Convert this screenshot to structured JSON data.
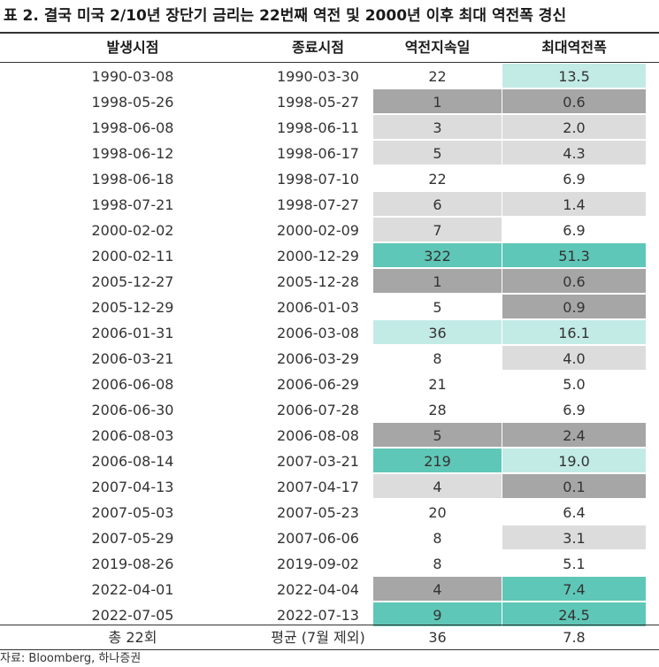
{
  "title": "표 2. 결국 미국 2/10년 장단기 금리는 22번째 역전 및 2000년 이후 최대 역전폭 경신",
  "colors": {
    "light": "#c2ebe6",
    "gray": "#dcdcdc",
    "dark": "#a6a6a6",
    "teal": "#5fc7b7"
  },
  "headers": [
    "발생시점",
    "종료시점",
    "역전지속일",
    "최대역전폭"
  ],
  "rows": [
    {
      "start": "1990-03-08",
      "end": "1990-03-30",
      "days": "22",
      "max": "13.5",
      "days_fill": "none",
      "max_fill": "light"
    },
    {
      "start": "1998-05-26",
      "end": "1998-05-27",
      "days": "1",
      "max": "0.6",
      "days_fill": "dark",
      "max_fill": "dark"
    },
    {
      "start": "1998-06-08",
      "end": "1998-06-11",
      "days": "3",
      "max": "2.0",
      "days_fill": "gray",
      "max_fill": "gray"
    },
    {
      "start": "1998-06-12",
      "end": "1998-06-17",
      "days": "5",
      "max": "4.3",
      "days_fill": "gray",
      "max_fill": "gray"
    },
    {
      "start": "1998-06-18",
      "end": "1998-07-10",
      "days": "22",
      "max": "6.9",
      "days_fill": "none",
      "max_fill": "none"
    },
    {
      "start": "1998-07-21",
      "end": "1998-07-27",
      "days": "6",
      "max": "1.4",
      "days_fill": "gray",
      "max_fill": "gray"
    },
    {
      "start": "2000-02-02",
      "end": "2000-02-09",
      "days": "7",
      "max": "6.9",
      "days_fill": "gray",
      "max_fill": "none"
    },
    {
      "start": "2000-02-11",
      "end": "2000-12-29",
      "days": "322",
      "max": "51.3",
      "days_fill": "teal",
      "max_fill": "teal"
    },
    {
      "start": "2005-12-27",
      "end": "2005-12-28",
      "days": "1",
      "max": "0.6",
      "days_fill": "dark",
      "max_fill": "dark"
    },
    {
      "start": "2005-12-29",
      "end": "2006-01-03",
      "days": "5",
      "max": "0.9",
      "days_fill": "none",
      "max_fill": "dark"
    },
    {
      "start": "2006-01-31",
      "end": "2006-03-08",
      "days": "36",
      "max": "16.1",
      "days_fill": "light",
      "max_fill": "light"
    },
    {
      "start": "2006-03-21",
      "end": "2006-03-29",
      "days": "8",
      "max": "4.0",
      "days_fill": "none",
      "max_fill": "gray"
    },
    {
      "start": "2006-06-08",
      "end": "2006-06-29",
      "days": "21",
      "max": "5.0",
      "days_fill": "none",
      "max_fill": "none"
    },
    {
      "start": "2006-06-30",
      "end": "2006-07-28",
      "days": "28",
      "max": "6.9",
      "days_fill": "none",
      "max_fill": "none"
    },
    {
      "start": "2006-08-03",
      "end": "2006-08-08",
      "days": "5",
      "max": "2.4",
      "days_fill": "dark",
      "max_fill": "dark"
    },
    {
      "start": "2006-08-14",
      "end": "2007-03-21",
      "days": "219",
      "max": "19.0",
      "days_fill": "teal",
      "max_fill": "light"
    },
    {
      "start": "2007-04-13",
      "end": "2007-04-17",
      "days": "4",
      "max": "0.1",
      "days_fill": "gray",
      "max_fill": "dark"
    },
    {
      "start": "2007-05-03",
      "end": "2007-05-23",
      "days": "20",
      "max": "6.4",
      "days_fill": "none",
      "max_fill": "none"
    },
    {
      "start": "2007-05-29",
      "end": "2007-06-06",
      "days": "8",
      "max": "3.1",
      "days_fill": "none",
      "max_fill": "gray"
    },
    {
      "start": "2019-08-26",
      "end": "2019-09-02",
      "days": "8",
      "max": "5.1",
      "days_fill": "none",
      "max_fill": "none"
    },
    {
      "start": "2022-04-01",
      "end": "2022-04-04",
      "days": "4",
      "max": "7.4",
      "days_fill": "dark",
      "max_fill": "teal"
    },
    {
      "start": "2022-07-05",
      "end": "2022-07-13",
      "days": "9",
      "max": "24.5",
      "days_fill": "teal",
      "max_fill": "teal"
    }
  ],
  "footer": {
    "total": "총 22회",
    "avg_label": "평균 (7월 제외)",
    "avg_days": "36",
    "avg_max": "7.8"
  },
  "source": "자료: Bloomberg, 하나증권"
}
